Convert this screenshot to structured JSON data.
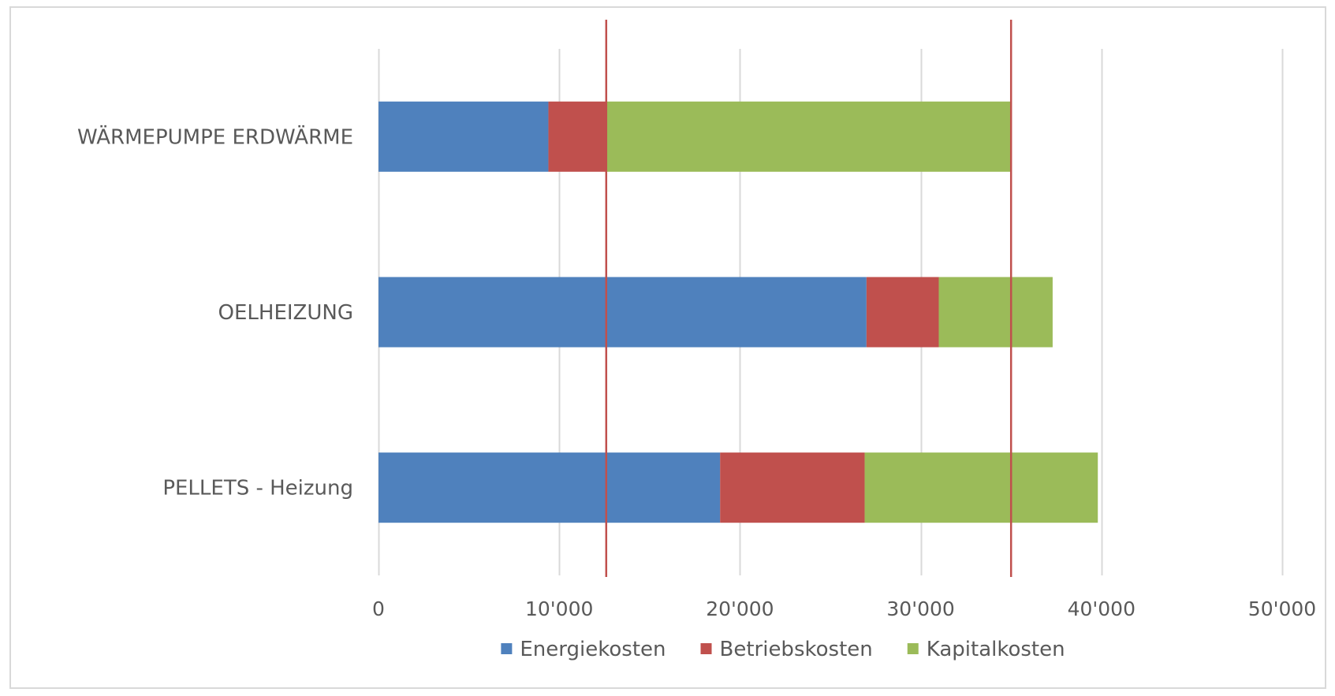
{
  "chart_data": {
    "type": "bar",
    "orientation": "horizontal",
    "stacked": true,
    "categories": [
      "WÄRMEPUMPE ERDWÄRME",
      "OELHEIZUNG",
      "PELLETS - Heizung"
    ],
    "series": [
      {
        "name": "Energiekosten",
        "color": "#4f81bd",
        "values": [
          9400,
          27000,
          18900
        ]
      },
      {
        "name": "Betriebskosten",
        "color": "#c0504d",
        "values": [
          3200,
          4000,
          8000
        ]
      },
      {
        "name": "Kapitalkosten",
        "color": "#9bbb59",
        "values": [
          22400,
          6300,
          12900
        ]
      }
    ],
    "xlim": [
      0,
      50000
    ],
    "x_ticks": [
      {
        "value": 0,
        "label": "0"
      },
      {
        "value": 10000,
        "label": "10'000"
      },
      {
        "value": 20000,
        "label": "20'000"
      },
      {
        "value": 30000,
        "label": "30'000"
      },
      {
        "value": 40000,
        "label": "40'000"
      },
      {
        "value": 50000,
        "label": "50'000"
      }
    ],
    "reference_lines": [
      {
        "value": 12600,
        "color": "#c0504d"
      },
      {
        "value": 35000,
        "color": "#c0504d"
      }
    ],
    "grid": true,
    "legend_position": "bottom",
    "gridline_color": "#d9d9d9",
    "label_color": "#595959"
  }
}
